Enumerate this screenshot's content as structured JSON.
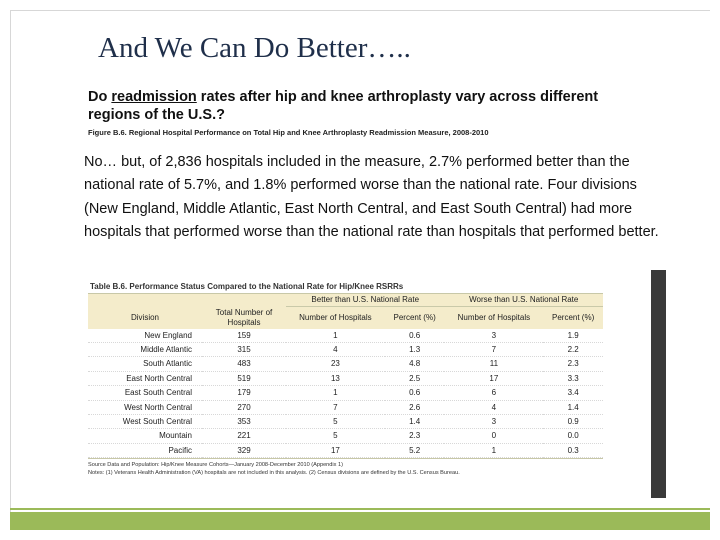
{
  "slide": {
    "title": "And We Can Do Better…..",
    "question_pre": "Do ",
    "question_link": "readmission",
    "question_post": " rates after hip and knee arthroplasty vary across different regions of the U.S.?",
    "figure_caption": "Figure B.6. Regional Hospital Performance on Total Hip and Knee Arthroplasty Readmission Measure, 2008-2010",
    "body_text": "No… but, of 2,836 hospitals included in the measure, 2.7% performed better than the national rate of 5.7%, and 1.8%  performed worse than the national rate. Four divisions (New England, Middle  Atlantic, East North Central, and East South Central) had more hospitals that performed worse than the national  rate than hospitals that performed better."
  },
  "table": {
    "caption": "Table B.6. Performance Status Compared to the National Rate for Hip/Knee RSRRs",
    "group_better": "Better than U.S. National Rate",
    "group_worse": "Worse than U.S. National Rate",
    "col_division": "Division",
    "col_total": "Total Number of Hospitals",
    "col_num_better": "Number of Hospitals",
    "col_pct_better": "Percent (%)",
    "col_num_worse": "Number of Hospitals",
    "col_pct_worse": "Percent (%)",
    "rows": [
      {
        "division": "New England",
        "total": "159",
        "nb": "1",
        "pb": "0.6",
        "nw": "3",
        "pw": "1.9"
      },
      {
        "division": "Middle Atlantic",
        "total": "315",
        "nb": "4",
        "pb": "1.3",
        "nw": "7",
        "pw": "2.2"
      },
      {
        "division": "South Atlantic",
        "total": "483",
        "nb": "23",
        "pb": "4.8",
        "nw": "11",
        "pw": "2.3"
      },
      {
        "division": "East North Central",
        "total": "519",
        "nb": "13",
        "pb": "2.5",
        "nw": "17",
        "pw": "3.3"
      },
      {
        "division": "East South Central",
        "total": "179",
        "nb": "1",
        "pb": "0.6",
        "nw": "6",
        "pw": "3.4"
      },
      {
        "division": "West North Central",
        "total": "270",
        "nb": "7",
        "pb": "2.6",
        "nw": "4",
        "pw": "1.4"
      },
      {
        "division": "West South Central",
        "total": "353",
        "nb": "5",
        "pb": "1.4",
        "nw": "3",
        "pw": "0.9"
      },
      {
        "division": "Mountain",
        "total": "221",
        "nb": "5",
        "pb": "2.3",
        "nw": "0",
        "pw": "0.0"
      },
      {
        "division": "Pacific",
        "total": "329",
        "nb": "17",
        "pb": "5.2",
        "nw": "1",
        "pw": "0.3"
      }
    ],
    "source": "Source Data and Population: Hip/Knee Measure Cohorts—January 2008-December 2010 (Appendix 1)",
    "notes": "Notes: (1) Veterans Health Administration (VA) hospitals are not included in this analysis. (2) Census divisions are defined by the U.S. Census Bureau."
  }
}
